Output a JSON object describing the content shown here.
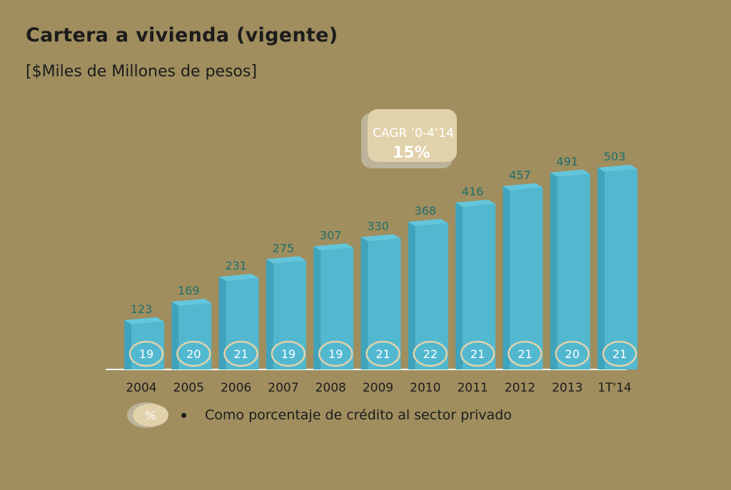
{
  "title": "Cartera a vivienda (vigente)",
  "subtitle": "[$Miles de Millones de pesos]",
  "cagr_badge": {
    "label": "CAGR ‘0-4’14",
    "value": "15%"
  },
  "legend": {
    "marker": "%",
    "text": "Como porcentaje de crédito al sector privado"
  },
  "colors": {
    "background": "#a08e5f",
    "bar_front": "#52b8d0",
    "bar_side": "#3fa3bc",
    "bar_top": "#63c6dc",
    "value_label": "#1f6f6a",
    "badge": "#e2d2ab",
    "badge_shadow": "#bcb39a"
  },
  "chart_data": {
    "type": "bar",
    "categories": [
      "2004",
      "2005",
      "2006",
      "2007",
      "2008",
      "2009",
      "2010",
      "2011",
      "2012",
      "2013",
      "1T'14"
    ],
    "values": [
      123,
      169,
      231,
      275,
      307,
      330,
      368,
      416,
      457,
      491,
      503
    ],
    "percent_of_private_credit": [
      19,
      20,
      21,
      19,
      19,
      21,
      22,
      21,
      21,
      20,
      21
    ]
  }
}
